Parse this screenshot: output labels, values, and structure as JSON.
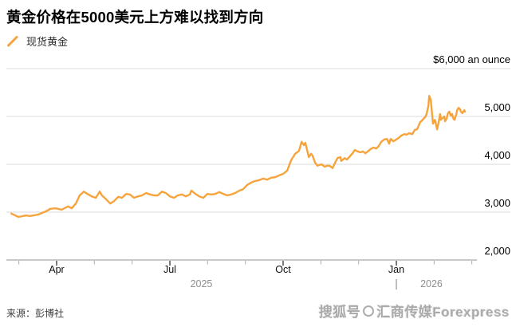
{
  "header": {
    "title": "黄金价格在5000美元上方难以找到方向",
    "legend": {
      "label": "现货黄金",
      "color": "#F7A33B"
    }
  },
  "footer": {
    "source": "来源：彭博社",
    "watermark": {
      "prefix": "搜狐号",
      "logo": "sohu-circle-logo",
      "suffix": "汇商传媒Forexpress"
    }
  },
  "chart_data": {
    "type": "line",
    "title": "黄金价格在5000美元上方难以找到方向",
    "series_note": "Spot gold price, USD per ounce, ~Feb 2025 to late Feb 2026",
    "x_unit": "months since 2025-01-01 (3 = Apr 1 2025, 12 = Jan 1 2026)",
    "line_color": "#F7A33B",
    "grid": true,
    "legend_position": "top-left",
    "x_axis": {
      "major_ticks": [
        {
          "m": 3,
          "label": "Apr"
        },
        {
          "m": 6,
          "label": "Jul"
        },
        {
          "m": 9,
          "label": "Oct"
        },
        {
          "m": 12,
          "label": "Jan"
        }
      ],
      "minor_ticks": [
        2,
        4,
        5,
        7,
        8,
        10,
        11,
        13,
        14
      ],
      "years": [
        {
          "label": "2025"
        },
        {
          "label": "2026"
        }
      ],
      "year_divider_m": 12
    },
    "y_axis": {
      "range": [
        2000,
        6000
      ],
      "unit_label": "$6,000 an ounce",
      "ticks": [
        {
          "v": 6000,
          "label": "$6,000 an ounce"
        },
        {
          "v": 5000,
          "label": "5,000"
        },
        {
          "v": 4000,
          "label": "4,000"
        },
        {
          "v": 3000,
          "label": "3,000"
        },
        {
          "v": 2000,
          "label": "2,000"
        }
      ]
    },
    "series": [
      {
        "name": "现货黄金",
        "points": [
          [
            1.8,
            2970
          ],
          [
            1.99,
            2900
          ],
          [
            2.18,
            2930
          ],
          [
            2.3,
            2920
          ],
          [
            2.51,
            2950
          ],
          [
            2.73,
            3020
          ],
          [
            2.83,
            3070
          ],
          [
            2.98,
            3080
          ],
          [
            3.13,
            3050
          ],
          [
            3.3,
            3120
          ],
          [
            3.4,
            3080
          ],
          [
            3.51,
            3180
          ],
          [
            3.61,
            3350
          ],
          [
            3.72,
            3430
          ],
          [
            3.82,
            3380
          ],
          [
            3.93,
            3330
          ],
          [
            4.04,
            3300
          ],
          [
            4.14,
            3430
          ],
          [
            4.2,
            3350
          ],
          [
            4.31,
            3270
          ],
          [
            4.42,
            3180
          ],
          [
            4.52,
            3230
          ],
          [
            4.63,
            3320
          ],
          [
            4.73,
            3300
          ],
          [
            4.84,
            3380
          ],
          [
            4.94,
            3370
          ],
          [
            5.05,
            3300
          ],
          [
            5.16,
            3330
          ],
          [
            5.26,
            3350
          ],
          [
            5.37,
            3400
          ],
          [
            5.47,
            3370
          ],
          [
            5.58,
            3350
          ],
          [
            5.68,
            3350
          ],
          [
            5.79,
            3430
          ],
          [
            5.89,
            3400
          ],
          [
            6.0,
            3330
          ],
          [
            6.11,
            3300
          ],
          [
            6.21,
            3350
          ],
          [
            6.32,
            3370
          ],
          [
            6.42,
            3330
          ],
          [
            6.53,
            3370
          ],
          [
            6.57,
            3450
          ],
          [
            6.68,
            3380
          ],
          [
            6.78,
            3330
          ],
          [
            6.89,
            3300
          ],
          [
            6.99,
            3380
          ],
          [
            7.1,
            3370
          ],
          [
            7.2,
            3380
          ],
          [
            7.31,
            3420
          ],
          [
            7.42,
            3380
          ],
          [
            7.52,
            3350
          ],
          [
            7.63,
            3370
          ],
          [
            7.73,
            3400
          ],
          [
            7.84,
            3450
          ],
          [
            7.94,
            3480
          ],
          [
            8.05,
            3570
          ],
          [
            8.16,
            3620
          ],
          [
            8.26,
            3650
          ],
          [
            8.37,
            3670
          ],
          [
            8.47,
            3700
          ],
          [
            8.58,
            3680
          ],
          [
            8.68,
            3720
          ],
          [
            8.79,
            3730
          ],
          [
            8.9,
            3770
          ],
          [
            9.0,
            3800
          ],
          [
            9.11,
            3870
          ],
          [
            9.21,
            4080
          ],
          [
            9.32,
            4220
          ],
          [
            9.42,
            4280
          ],
          [
            9.49,
            4470
          ],
          [
            9.55,
            4400
          ],
          [
            9.59,
            4450
          ],
          [
            9.68,
            4150
          ],
          [
            9.74,
            4220
          ],
          [
            9.78,
            4180
          ],
          [
            9.85,
            4030
          ],
          [
            9.91,
            3970
          ],
          [
            10.02,
            4000
          ],
          [
            10.1,
            3950
          ],
          [
            10.16,
            3970
          ],
          [
            10.23,
            3970
          ],
          [
            10.31,
            3920
          ],
          [
            10.37,
            4020
          ],
          [
            10.44,
            4130
          ],
          [
            10.52,
            4150
          ],
          [
            10.54,
            4070
          ],
          [
            10.63,
            4130
          ],
          [
            10.69,
            4100
          ],
          [
            10.75,
            4150
          ],
          [
            10.84,
            4230
          ],
          [
            10.9,
            4300
          ],
          [
            10.97,
            4270
          ],
          [
            11.05,
            4250
          ],
          [
            11.11,
            4270
          ],
          [
            11.18,
            4230
          ],
          [
            11.26,
            4280
          ],
          [
            11.32,
            4320
          ],
          [
            11.39,
            4350
          ],
          [
            11.47,
            4330
          ],
          [
            11.53,
            4380
          ],
          [
            11.6,
            4470
          ],
          [
            11.68,
            4520
          ],
          [
            11.75,
            4530
          ],
          [
            11.81,
            4430
          ],
          [
            11.85,
            4530
          ],
          [
            11.92,
            4480
          ],
          [
            12.0,
            4520
          ],
          [
            12.06,
            4550
          ],
          [
            12.13,
            4600
          ],
          [
            12.21,
            4630
          ],
          [
            12.27,
            4620
          ],
          [
            12.34,
            4650
          ],
          [
            12.42,
            4630
          ],
          [
            12.49,
            4720
          ],
          [
            12.55,
            4730
          ],
          [
            12.63,
            4880
          ],
          [
            12.7,
            4930
          ],
          [
            12.74,
            4970
          ],
          [
            12.76,
            4980
          ],
          [
            12.8,
            5050
          ],
          [
            12.85,
            5220
          ],
          [
            12.87,
            5430
          ],
          [
            12.91,
            5350
          ],
          [
            12.95,
            5020
          ],
          [
            12.97,
            4850
          ],
          [
            13.02,
            4930
          ],
          [
            13.06,
            4800
          ],
          [
            13.08,
            4730
          ],
          [
            13.12,
            4880
          ],
          [
            13.16,
            5050
          ],
          [
            13.18,
            4930
          ],
          [
            13.23,
            4970
          ],
          [
            13.27,
            5000
          ],
          [
            13.29,
            4900
          ],
          [
            13.33,
            4950
          ],
          [
            13.37,
            5070
          ],
          [
            13.4,
            5100
          ],
          [
            13.44,
            5020
          ],
          [
            13.48,
            5050
          ],
          [
            13.5,
            4970
          ],
          [
            13.54,
            4930
          ],
          [
            13.59,
            5050
          ],
          [
            13.61,
            5130
          ],
          [
            13.65,
            5180
          ],
          [
            13.69,
            5150
          ],
          [
            13.71,
            5100
          ],
          [
            13.75,
            5070
          ],
          [
            13.8,
            5130
          ],
          [
            13.82,
            5100
          ]
        ]
      }
    ]
  }
}
